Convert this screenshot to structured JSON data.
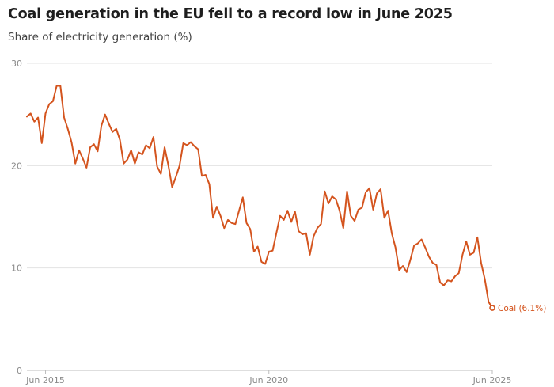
{
  "chart_data": {
    "type": "line",
    "title": "Coal generation in the EU fell to a record low in June 2025",
    "subtitle": "Share of electricity generation (%)",
    "xlabel": "",
    "ylabel": "Share of electricity generation (%)",
    "ylim": [
      0,
      30
    ],
    "yticks": [
      0,
      10,
      20,
      30
    ],
    "xlim": [
      "2015-01",
      "2025-06"
    ],
    "xticks": [
      {
        "date": "2015-06",
        "label": "Jun 2015"
      },
      {
        "date": "2020-06",
        "label": "Jun 2020"
      },
      {
        "date": "2025-06",
        "label": "Jun 2025"
      }
    ],
    "line_color": "#d4541e",
    "grid": true,
    "series": [
      {
        "name": "Coal",
        "end_label": "Coal (6.1%)",
        "start": "2015-01",
        "frequency": "monthly",
        "values": [
          24.8,
          25.1,
          24.3,
          24.7,
          22.2,
          25.1,
          26.0,
          26.3,
          27.8,
          27.8,
          24.7,
          23.6,
          22.3,
          20.2,
          21.5,
          20.7,
          19.8,
          21.8,
          22.1,
          21.4,
          23.9,
          25.0,
          24.1,
          23.3,
          23.6,
          22.5,
          20.2,
          20.6,
          21.5,
          20.2,
          21.3,
          21.1,
          22.0,
          21.7,
          22.8,
          19.9,
          19.2,
          21.8,
          20.0,
          17.9,
          18.9,
          20.0,
          22.2,
          22.0,
          22.3,
          21.9,
          21.6,
          19.0,
          19.1,
          18.2,
          14.9,
          16.0,
          15.1,
          13.9,
          14.7,
          14.4,
          14.3,
          15.6,
          16.9,
          14.4,
          13.8,
          11.6,
          12.1,
          10.6,
          10.4,
          11.6,
          11.7,
          13.4,
          15.1,
          14.7,
          15.6,
          14.5,
          15.5,
          13.6,
          13.3,
          13.4,
          11.3,
          13.1,
          13.9,
          14.3,
          17.5,
          16.3,
          17.0,
          16.7,
          15.6,
          13.9,
          17.5,
          15.1,
          14.6,
          15.7,
          15.9,
          17.4,
          17.8,
          15.7,
          17.3,
          17.7,
          14.9,
          15.6,
          13.4,
          12.0,
          9.8,
          10.2,
          9.6,
          10.8,
          12.2,
          12.4,
          12.8,
          12.0,
          11.1,
          10.5,
          10.3,
          8.6,
          8.3,
          8.8,
          8.7,
          9.2,
          9.5,
          11.3,
          12.6,
          11.3,
          11.5,
          13.0,
          10.5,
          8.9,
          6.7,
          6.1
        ]
      }
    ]
  }
}
